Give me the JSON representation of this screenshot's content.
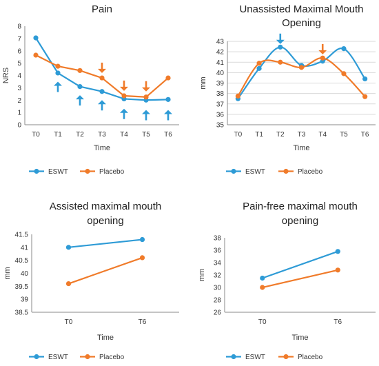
{
  "colors": {
    "eswt": "#2E9BD6",
    "placebo": "#F07B2A"
  },
  "chart_data": [
    {
      "type": "line",
      "smooth": false,
      "title_lines": [
        "Pain"
      ],
      "ylabel": "NRS",
      "xlabel": "Time",
      "categories": [
        "T0",
        "T1",
        "T2",
        "T3",
        "T4",
        "T5",
        "T6"
      ],
      "ylim": [
        0,
        8
      ],
      "ystep": 1,
      "yticks": [
        "0",
        "1",
        "2",
        "3",
        "4",
        "5",
        "6",
        "7",
        "8"
      ],
      "grid": false,
      "series": [
        {
          "name": "ESWT",
          "values": [
            7.05,
            4.2,
            3.1,
            2.7,
            2.1,
            2.0,
            2.05
          ]
        },
        {
          "name": "Placebo",
          "values": [
            5.65,
            4.75,
            4.4,
            3.8,
            2.35,
            2.25,
            3.8
          ]
        }
      ],
      "annotations": [
        {
          "type": "arrow-up",
          "color": "eswt",
          "x_index": 1,
          "y": 3.5
        },
        {
          "type": "arrow-up",
          "color": "eswt",
          "x_index": 2,
          "y": 2.4
        },
        {
          "type": "arrow-up",
          "color": "eswt",
          "x_index": 3,
          "y": 2.0
        },
        {
          "type": "arrow-up",
          "color": "eswt",
          "x_index": 4,
          "y": 1.3
        },
        {
          "type": "arrow-up",
          "color": "eswt",
          "x_index": 5,
          "y": 1.2
        },
        {
          "type": "arrow-up",
          "color": "eswt",
          "x_index": 6,
          "y": 1.2
        },
        {
          "type": "arrow-down",
          "color": "placebo",
          "x_index": 3,
          "y": 4.2
        },
        {
          "type": "arrow-down",
          "color": "placebo",
          "x_index": 4,
          "y": 2.75
        },
        {
          "type": "arrow-down",
          "color": "placebo",
          "x_index": 5,
          "y": 2.7
        }
      ],
      "legend": "bottom"
    },
    {
      "type": "line",
      "smooth": true,
      "title_lines": [
        "Unassisted Maximal Mouth",
        "Opening"
      ],
      "ylabel": "mm",
      "xlabel": "Time",
      "categories": [
        "T0",
        "T1",
        "T2",
        "T3",
        "T4",
        "T5",
        "T6"
      ],
      "ylim": [
        35,
        43
      ],
      "ystep": 1,
      "yticks": [
        "35",
        "36",
        "37",
        "38",
        "39",
        "40",
        "41",
        "42",
        "43"
      ],
      "grid": true,
      "series": [
        {
          "name": "ESWT",
          "values": [
            37.5,
            40.4,
            42.45,
            40.7,
            41.1,
            42.3,
            39.4
          ]
        },
        {
          "name": "Placebo",
          "values": [
            37.75,
            40.9,
            41.0,
            40.5,
            41.4,
            39.9,
            37.7
          ]
        }
      ],
      "annotations": [
        {
          "type": "arrow-down",
          "color": "eswt",
          "x_index": 2,
          "y": 42.75
        },
        {
          "type": "arrow-down",
          "color": "placebo",
          "x_index": 4,
          "y": 41.75
        }
      ],
      "legend": "bottom"
    },
    {
      "type": "line",
      "smooth": false,
      "title_lines": [
        "Assisted maximal mouth",
        "opening"
      ],
      "ylabel": "mm",
      "xlabel": "Time",
      "categories": [
        "T0",
        "T6"
      ],
      "ylim": [
        38.5,
        41.5
      ],
      "ystep": 0.5,
      "yticks": [
        "38.5",
        "39",
        "39.5",
        "40",
        "40.5",
        "41",
        "41.5"
      ],
      "grid": false,
      "series": [
        {
          "name": "ESWT",
          "values": [
            41.0,
            41.3
          ]
        },
        {
          "name": "Placebo",
          "values": [
            39.6,
            40.6
          ]
        }
      ],
      "annotations": [],
      "legend": "bottom"
    },
    {
      "type": "line",
      "smooth": false,
      "title_lines": [
        "Pain-free maximal mouth",
        "opening"
      ],
      "ylabel": "mm",
      "xlabel": "Time",
      "categories": [
        "T0",
        "T6"
      ],
      "ylim": [
        26,
        38
      ],
      "ystep": 2,
      "yticks": [
        "26",
        "28",
        "30",
        "32",
        "34",
        "36",
        "38"
      ],
      "grid": false,
      "series": [
        {
          "name": "ESWT",
          "values": [
            31.5,
            35.8
          ]
        },
        {
          "name": "Placebo",
          "values": [
            30.0,
            32.8
          ]
        }
      ],
      "annotations": [],
      "legend": "bottom"
    }
  ]
}
